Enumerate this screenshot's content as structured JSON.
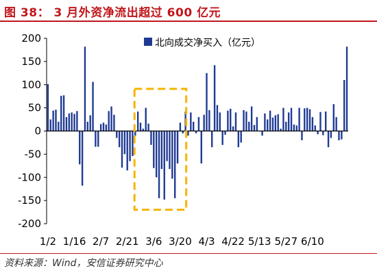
{
  "title": "图 38： 3 月外资净流出超过 600 亿元",
  "source": "资料来源：Wind，安信证券研究中心",
  "colors": {
    "bar": "#1f3a93",
    "title": "#c0161b",
    "highlight": "#f5b400"
  },
  "chart_data": {
    "type": "bar",
    "title": "",
    "xlabel": "",
    "ylabel": "",
    "ylim": [
      -200,
      200
    ],
    "yticks": [
      200,
      150,
      100,
      50,
      0,
      -50,
      -100,
      -150,
      -200
    ],
    "xtick_labels": [
      "1/2",
      "1/16",
      "2/7",
      "2/21",
      "3/6",
      "3/20",
      "4/3",
      "4/22",
      "5/13",
      "5/27",
      "6/10"
    ],
    "xtick_positions": [
      0,
      10,
      20,
      30,
      40,
      50,
      60,
      70,
      80,
      90,
      100
    ],
    "series": [
      {
        "name": "北向成交净买入（亿元）",
        "values": [
          101,
          25,
          44,
          46,
          20,
          76,
          77,
          30,
          38,
          40,
          37,
          43,
          -72,
          -118,
          182,
          20,
          34,
          106,
          -34,
          -34,
          15,
          18,
          14,
          43,
          53,
          35,
          -15,
          -35,
          -79,
          -50,
          -85,
          -65,
          -54,
          -10,
          42,
          18,
          5,
          50,
          16,
          -30,
          -80,
          -100,
          -145,
          -82,
          -148,
          -65,
          -82,
          -103,
          -145,
          -70,
          18,
          -5,
          42,
          -10,
          40,
          20,
          -5,
          30,
          -70,
          35,
          125,
          45,
          -35,
          142,
          56,
          40,
          -30,
          -8,
          44,
          48,
          10,
          40,
          -35,
          -25,
          45,
          42,
          20,
          53,
          13,
          30,
          0,
          -10,
          38,
          25,
          44,
          29,
          34,
          36,
          5,
          50,
          20,
          40,
          50,
          14,
          12,
          50,
          -20,
          49,
          50,
          47,
          30,
          12,
          -7,
          41,
          -9,
          42,
          -35,
          -15,
          58,
          30,
          -20,
          -18,
          110,
          182
        ]
      }
    ],
    "legend": "top-center",
    "annotation": "dashed highlight box around March"
  }
}
